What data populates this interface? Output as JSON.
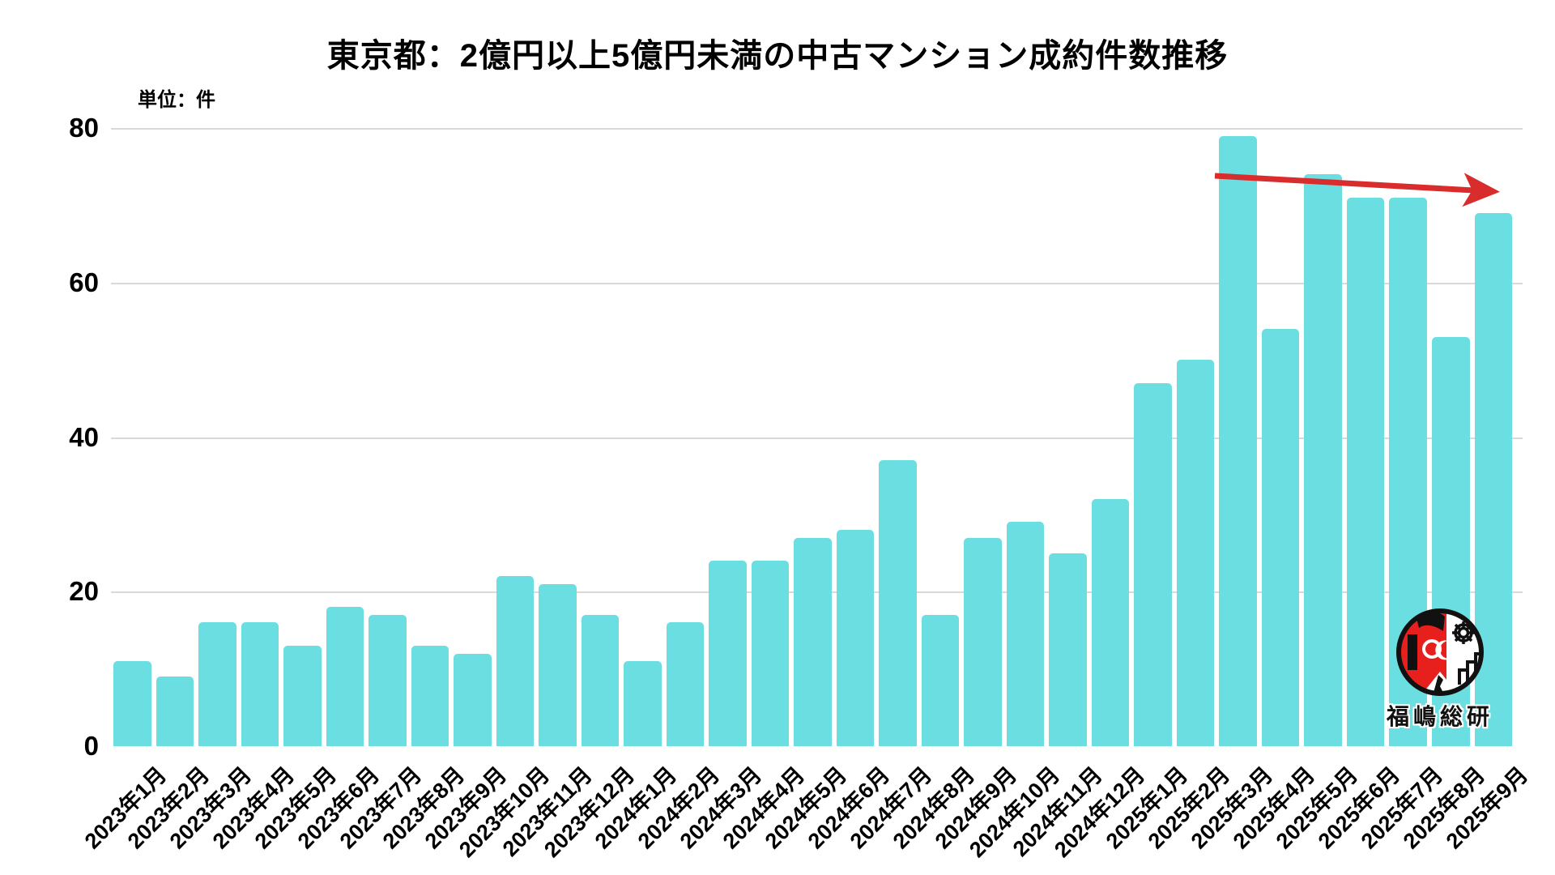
{
  "header": {
    "title": "東京都：2億円以上5億円未満の中古マンション成約件数推移",
    "unit_label": "単位：件"
  },
  "chart_data": {
    "type": "bar",
    "title": "東京都：2億円以上5億円未満の中古マンション成約件数推移",
    "xlabel": "",
    "ylabel": "単位：件",
    "ylim": [
      0,
      80
    ],
    "yticks": [
      0,
      20,
      40,
      60,
      80
    ],
    "grid": "horizontal",
    "legend_position": "none",
    "categories": [
      "2023年1月",
      "2023年2月",
      "2023年3月",
      "2023年4月",
      "2023年5月",
      "2023年6月",
      "2023年7月",
      "2023年8月",
      "2023年9月",
      "2023年10月",
      "2023年11月",
      "2023年12月",
      "2024年1月",
      "2024年2月",
      "2024年3月",
      "2024年4月",
      "2024年5月",
      "2024年6月",
      "2024年7月",
      "2024年8月",
      "2024年9月",
      "2024年10月",
      "2024年11月",
      "2024年12月",
      "2025年1月",
      "2025年2月",
      "2025年3月",
      "2025年4月",
      "2025年5月",
      "2025年6月",
      "2025年7月",
      "2025年8月",
      "2025年9月"
    ],
    "values": [
      11,
      9,
      16,
      16,
      13,
      18,
      17,
      13,
      12,
      22,
      21,
      17,
      11,
      16,
      24,
      24,
      27,
      28,
      37,
      17,
      27,
      29,
      25,
      32,
      47,
      50,
      79,
      54,
      74,
      71,
      71,
      53,
      69
    ],
    "colors": {
      "bar": "#6BDEE1",
      "gridline": "#D9D9D9",
      "text": "#000000"
    },
    "annotations": [
      {
        "type": "trend-arrow",
        "color": "#D92C2C",
        "direction": "slightly-downward"
      }
    ]
  },
  "logo": {
    "text": "福嶋総研",
    "colors": {
      "red": "#E8201D",
      "black": "#111111",
      "white": "#ffffff"
    }
  }
}
